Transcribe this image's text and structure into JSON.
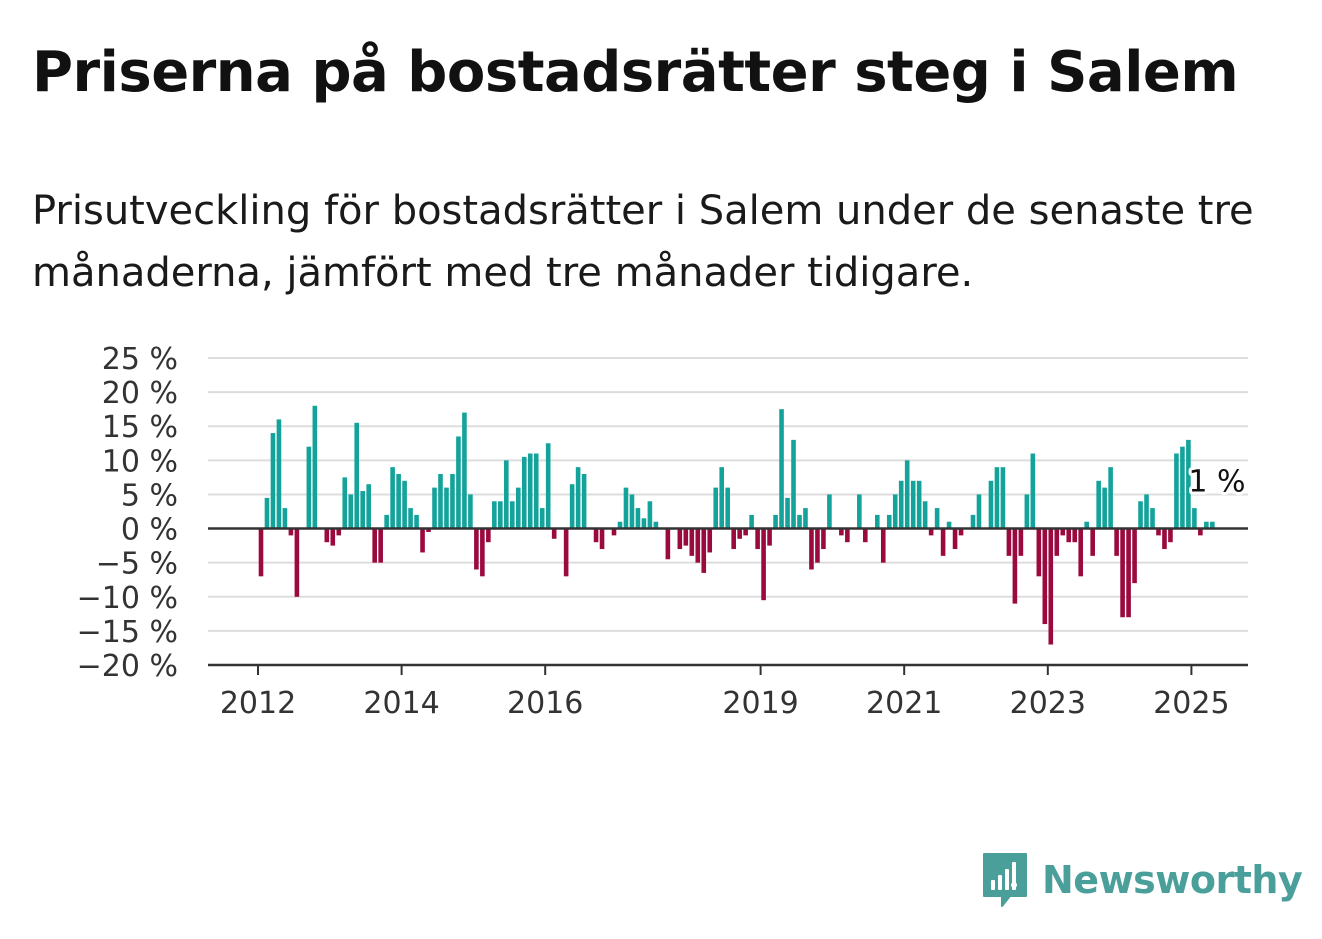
{
  "title": "Priserna på bostadsrätter steg i Salem",
  "subtitle": "Prisutveckling för bostadsrätter i Salem under de senaste tre månaderna, jämfört med tre månader tidigare.",
  "brand": {
    "name": "Newsworthy",
    "icon": "newsworthy-logo-icon",
    "color": "#4a9f9a"
  },
  "chart_data": {
    "type": "bar",
    "y_unit": "%",
    "ylim": [
      -20,
      25
    ],
    "yticks": [
      25,
      20,
      15,
      10,
      5,
      0,
      -5,
      -10,
      -15,
      -20
    ],
    "ytick_labels": [
      "25 %",
      "20 %",
      "15 %",
      "10 %",
      "5 %",
      "0 %",
      "−5 %",
      "−10 %",
      "−15 %",
      "−20 %"
    ],
    "xticks": [
      "2012",
      "2014",
      "2016",
      "2019",
      "2021",
      "2023",
      "2025"
    ],
    "grid": true,
    "colors": {
      "positive": "#13a39a",
      "negative": "#9b0a3e",
      "axis": "#333333",
      "grid": "#dddddd"
    },
    "start_month": "2012-01",
    "values": [
      -7,
      4.5,
      14,
      16,
      3,
      -1,
      -10,
      0,
      12,
      18,
      0,
      -2,
      -2.5,
      -1,
      7.5,
      5,
      15.5,
      5.5,
      6.5,
      -5,
      -5,
      2,
      9,
      8,
      7,
      3,
      2,
      -3.5,
      -0.5,
      6,
      8,
      6,
      8,
      13.5,
      17,
      5,
      -6,
      -7,
      -2,
      4,
      4,
      10,
      4,
      6,
      10.5,
      11,
      11,
      3,
      12.5,
      -1.5,
      0,
      -7,
      6.5,
      9,
      8,
      0,
      -2,
      -3,
      0,
      -1,
      1,
      6,
      5,
      3,
      1.5,
      4,
      1,
      0,
      -4.5,
      0,
      -3,
      -2.5,
      -4,
      -5,
      -6.5,
      -3.5,
      6,
      9,
      6,
      -3,
      -1.5,
      -1,
      2,
      -3,
      -10.5,
      -2.5,
      2,
      17.5,
      4.5,
      13,
      2,
      3,
      -6,
      -5,
      -3,
      5,
      0,
      -1,
      -2,
      0,
      5,
      -2,
      0,
      2,
      -5,
      2,
      5,
      7,
      10,
      7,
      7,
      4,
      -1,
      3,
      -4,
      1,
      -3,
      -1,
      0,
      2,
      5,
      0,
      7,
      9,
      9,
      -4,
      -11,
      -4,
      5,
      11,
      -7,
      -14,
      -17,
      -4,
      -1,
      -2,
      -2,
      -7,
      1,
      -4,
      7,
      6,
      9,
      -4,
      -13,
      -13,
      -8,
      4,
      5,
      3,
      -1,
      -3,
      -2,
      11,
      12,
      13,
      3,
      -1,
      1,
      1
    ],
    "annotation": {
      "label": "1 %",
      "value": 1
    }
  }
}
